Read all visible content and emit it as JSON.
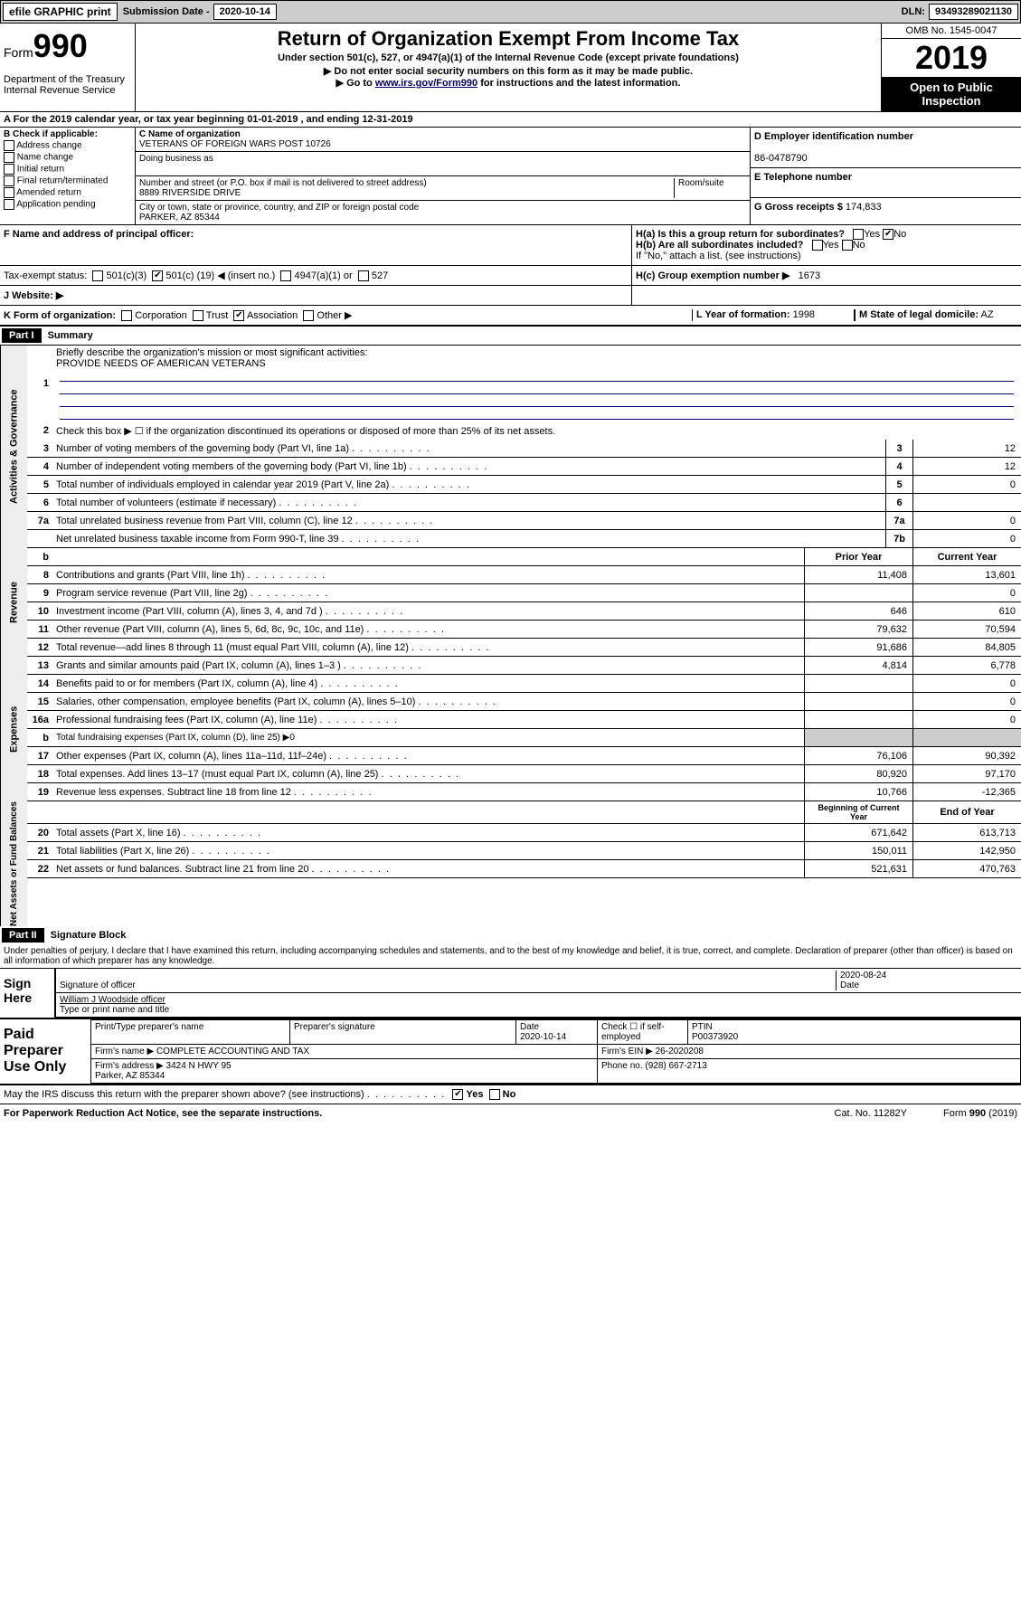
{
  "topbar": {
    "efile": "efile GRAPHIC print",
    "submission_label": "Submission Date - ",
    "submission_date": "2020-10-14",
    "dln_label": "DLN:",
    "dln": "93493289021130"
  },
  "header": {
    "form": "Form",
    "form_num": "990",
    "dept": "Department of the Treasury\nInternal Revenue Service",
    "title": "Return of Organization Exempt From Income Tax",
    "sub1": "Under section 501(c), 527, or 4947(a)(1) of the Internal Revenue Code (except private foundations)",
    "sub2": "▶ Do not enter social security numbers on this form as it may be made public.",
    "sub3_pre": "▶ Go to ",
    "sub3_link": "www.irs.gov/Form990",
    "sub3_post": " for instructions and the latest information.",
    "omb": "OMB No. 1545-0047",
    "year": "2019",
    "open": "Open to Public Inspection"
  },
  "row_a": "A   For the 2019 calendar year, or tax year beginning 01-01-2019    , and ending 12-31-2019",
  "section_b": {
    "label": "B Check if applicable:",
    "opts": [
      "Address change",
      "Name change",
      "Initial return",
      "Final return/terminated",
      "Amended return",
      "Application pending"
    ]
  },
  "section_c": {
    "name_label": "C Name of organization",
    "name": "VETERANS OF FOREIGN WARS POST 10726",
    "dba_label": "Doing business as",
    "addr_label": "Number and street (or P.O. box if mail is not delivered to street address)",
    "room_label": "Room/suite",
    "addr": "8889 RIVERSIDE DRIVE",
    "city_label": "City or town, state or province, country, and ZIP or foreign postal code",
    "city": "PARKER, AZ  85344"
  },
  "section_d": {
    "ein_label": "D Employer identification number",
    "ein": "86-0478790",
    "tel_label": "E Telephone number",
    "gross_label": "G Gross receipts $",
    "gross": "174,833"
  },
  "section_f": {
    "label": "F  Name and address of principal officer:"
  },
  "section_h": {
    "ha": "H(a)  Is this a group return for subordinates?",
    "ha_no_checked": true,
    "hb": "H(b)  Are all subordinates included?",
    "hb_note": "If \"No,\" attach a list. (see instructions)",
    "hc": "H(c)  Group exemption number ▶",
    "hc_val": "1673"
  },
  "tax_exempt": {
    "label": "Tax-exempt status:",
    "opt1": "501(c)(3)",
    "opt2_pre": "501(c) (",
    "opt2_val": "19",
    "opt2_post": ") ◀ (insert no.)",
    "opt2_checked": true,
    "opt3": "4947(a)(1) or",
    "opt4": "527"
  },
  "website": {
    "label": "J    Website: ▶"
  },
  "k_row": {
    "label": "K Form of organization:",
    "opts": [
      "Corporation",
      "Trust",
      "Association",
      "Other ▶"
    ],
    "checked_idx": 2,
    "l_label": "L Year of formation:",
    "l_val": "1998",
    "m_label": "M State of legal domicile:",
    "m_val": "AZ"
  },
  "part1": {
    "hdr": "Part I",
    "title": "Summary",
    "tab_act": "Activities & Governance",
    "tab_rev": "Revenue",
    "tab_exp": "Expenses",
    "tab_net": "Net Assets or Fund Balances",
    "line1_label": "Briefly describe the organization's mission or most significant activities:",
    "line1_val": "PROVIDE NEEDS OF AMERICAN VETERANS",
    "line2": "Check this box ▶ ☐  if the organization discontinued its operations or disposed of more than 25% of its net assets.",
    "lines": [
      {
        "n": "3",
        "t": "Number of voting members of the governing body (Part VI, line 1a)",
        "box": "3",
        "v": "12"
      },
      {
        "n": "4",
        "t": "Number of independent voting members of the governing body (Part VI, line 1b)",
        "box": "4",
        "v": "12"
      },
      {
        "n": "5",
        "t": "Total number of individuals employed in calendar year 2019 (Part V, line 2a)",
        "box": "5",
        "v": "0"
      },
      {
        "n": "6",
        "t": "Total number of volunteers (estimate if necessary)",
        "box": "6",
        "v": ""
      },
      {
        "n": "7a",
        "t": "Total unrelated business revenue from Part VIII, column (C), line 12",
        "box": "7a",
        "v": "0"
      },
      {
        "n": "",
        "t": "Net unrelated business taxable income from Form 990-T, line 39",
        "box": "7b",
        "v": "0"
      }
    ],
    "hdr_b": "b",
    "col_prior": "Prior Year",
    "col_current": "Current Year",
    "rev_lines": [
      {
        "n": "8",
        "t": "Contributions and grants (Part VIII, line 1h)",
        "p": "11,408",
        "c": "13,601"
      },
      {
        "n": "9",
        "t": "Program service revenue (Part VIII, line 2g)",
        "p": "",
        "c": "0"
      },
      {
        "n": "10",
        "t": "Investment income (Part VIII, column (A), lines 3, 4, and 7d )",
        "p": "646",
        "c": "610"
      },
      {
        "n": "11",
        "t": "Other revenue (Part VIII, column (A), lines 5, 6d, 8c, 9c, 10c, and 11e)",
        "p": "79,632",
        "c": "70,594"
      },
      {
        "n": "12",
        "t": "Total revenue—add lines 8 through 11 (must equal Part VIII, column (A), line 12)",
        "p": "91,686",
        "c": "84,805"
      }
    ],
    "exp_lines": [
      {
        "n": "13",
        "t": "Grants and similar amounts paid (Part IX, column (A), lines 1–3 )",
        "p": "4,814",
        "c": "6,778"
      },
      {
        "n": "14",
        "t": "Benefits paid to or for members (Part IX, column (A), line 4)",
        "p": "",
        "c": "0"
      },
      {
        "n": "15",
        "t": "Salaries, other compensation, employee benefits (Part IX, column (A), lines 5–10)",
        "p": "",
        "c": "0"
      },
      {
        "n": "16a",
        "t": "Professional fundraising fees (Part IX, column (A), line 11e)",
        "p": "",
        "c": "0"
      }
    ],
    "line_b": {
      "n": "b",
      "t": "Total fundraising expenses (Part IX, column (D), line 25) ▶0"
    },
    "exp_lines2": [
      {
        "n": "17",
        "t": "Other expenses (Part IX, column (A), lines 11a–11d, 11f–24e)",
        "p": "76,106",
        "c": "90,392"
      },
      {
        "n": "18",
        "t": "Total expenses. Add lines 13–17 (must equal Part IX, column (A), line 25)",
        "p": "80,920",
        "c": "97,170"
      },
      {
        "n": "19",
        "t": "Revenue less expenses. Subtract line 18 from line 12",
        "p": "10,766",
        "c": "-12,365"
      }
    ],
    "col_begin": "Beginning of Current Year",
    "col_end": "End of Year",
    "net_lines": [
      {
        "n": "20",
        "t": "Total assets (Part X, line 16)",
        "p": "671,642",
        "c": "613,713"
      },
      {
        "n": "21",
        "t": "Total liabilities (Part X, line 26)",
        "p": "150,011",
        "c": "142,950"
      },
      {
        "n": "22",
        "t": "Net assets or fund balances. Subtract line 21 from line 20",
        "p": "521,631",
        "c": "470,763"
      }
    ]
  },
  "part2": {
    "hdr": "Part II",
    "title": "Signature Block",
    "penalty": "Under penalties of perjury, I declare that I have examined this return, including accompanying schedules and statements, and to the best of my knowledge and belief, it is true, correct, and complete. Declaration of preparer (other than officer) is based on all information of which preparer has any knowledge.",
    "sign_here": "Sign Here",
    "sig_label": "Signature of officer",
    "date": "2020-08-24",
    "date_label": "Date",
    "name": "William J Woodside  officer",
    "name_label": "Type or print name and title"
  },
  "paid": {
    "label": "Paid Preparer Use Only",
    "h1": "Print/Type preparer's name",
    "h2": "Preparer's signature",
    "h3": "Date",
    "h3v": "2020-10-14",
    "h4": "Check ☐ if self-employed",
    "h5": "PTIN",
    "h5v": "P00373920",
    "firm_label": "Firm's name     ▶",
    "firm": "COMPLETE ACCOUNTING AND TAX",
    "ein_label": "Firm's EIN ▶",
    "ein": "26-2020208",
    "addr_label": "Firm's address ▶",
    "addr": "3424 N HWY 95\nParker, AZ  85344",
    "phone_label": "Phone no.",
    "phone": "(928) 667-2713"
  },
  "discuss": {
    "txt": "May the IRS discuss this return with the preparer shown above? (see instructions)",
    "yes_checked": true
  },
  "footer": {
    "left": "For Paperwork Reduction Act Notice, see the separate instructions.",
    "mid": "Cat. No. 11282Y",
    "right": "Form 990 (2019)"
  }
}
